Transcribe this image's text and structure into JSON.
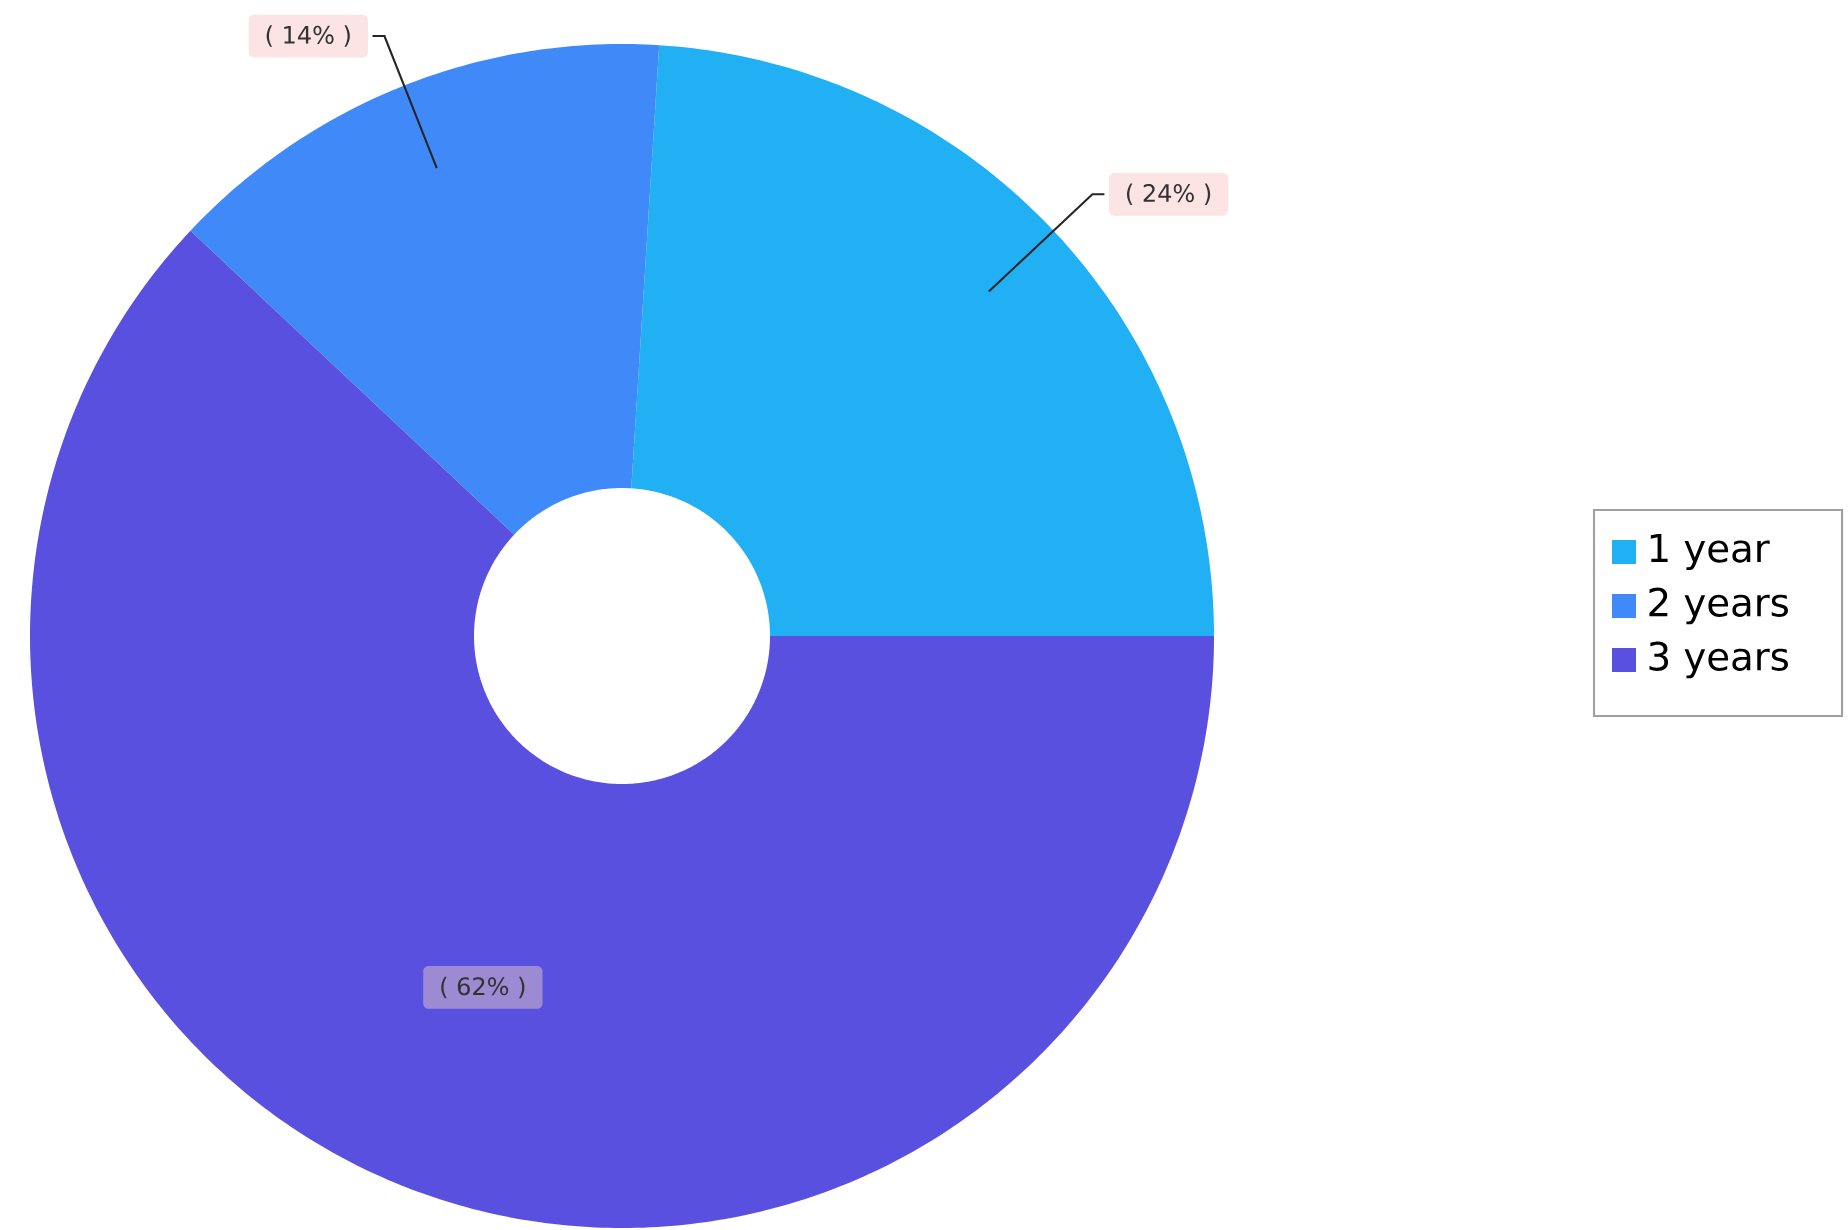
{
  "chart_data": {
    "type": "donut",
    "categories": [
      "1 year",
      "2 years",
      "3 years"
    ],
    "values": [
      24,
      14,
      62
    ],
    "colors": [
      "#22b0f5",
      "#3f8af8",
      "#5a50e0"
    ],
    "value_labels": [
      "( 24% )",
      "( 14% )",
      "( 62% )"
    ],
    "legend": "right"
  }
}
